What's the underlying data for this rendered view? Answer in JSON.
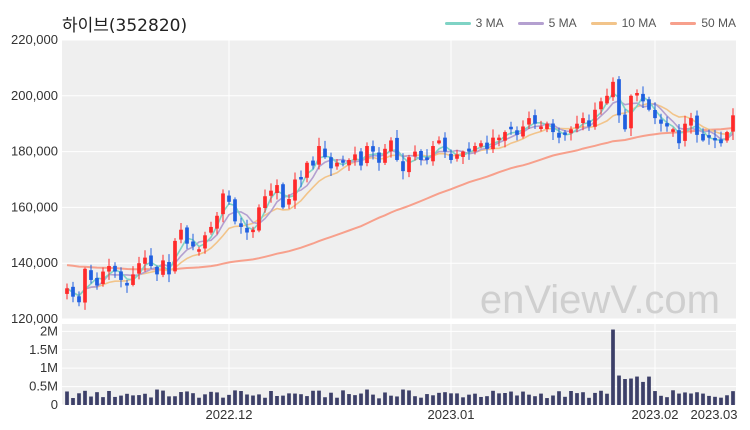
{
  "title": "하이브(352820)",
  "watermark": "enViewV.com",
  "colors": {
    "up": "#ff2a2a",
    "down": "#1f5fe0",
    "volume": "#3c3f68",
    "ma3": "#7fd3c5",
    "ma5": "#b4a0d0",
    "ma10": "#f2c48a",
    "ma50": "#f7a08c",
    "panel": "#efefef"
  },
  "chart_data": {
    "type": "candlestick",
    "title": "하이브(352820)",
    "x_tick_labels": [
      "2022.12",
      "2023.01",
      "2023.02",
      "2023.03"
    ],
    "x_tick_index": [
      27,
      64,
      98,
      132
    ],
    "price_axis": {
      "range": [
        120000,
        220000
      ],
      "ticks": [
        120000,
        140000,
        160000,
        180000,
        200000,
        220000
      ],
      "tick_labels": [
        "120,000",
        "140,000",
        "160,000",
        "180,000",
        "200,000",
        "220,000"
      ]
    },
    "volume_axis": {
      "range": [
        0,
        2200000
      ],
      "ticks": [
        0,
        500000,
        1000000,
        1500000,
        2000000
      ],
      "tick_labels": [
        "0",
        "0.5M",
        "1M",
        "1.5M",
        "2M"
      ]
    },
    "legend": [
      {
        "name": "3 MA",
        "color": "#7fd3c5"
      },
      {
        "name": "5 MA",
        "color": "#b4a0d0"
      },
      {
        "name": "10 MA",
        "color": "#f2c48a"
      },
      {
        "name": "50 MA",
        "color": "#f7a08c"
      }
    ],
    "closes": [
      131000,
      128000,
      126000,
      138000,
      134000,
      132000,
      137000,
      139000,
      137000,
      134000,
      132000,
      136000,
      140000,
      142000,
      139000,
      136000,
      141000,
      136000,
      148000,
      152000,
      147000,
      146000,
      145000,
      150000,
      153000,
      157000,
      165000,
      162000,
      155000,
      153000,
      151000,
      152000,
      160000,
      164000,
      166000,
      168000,
      160000,
      163000,
      170000,
      170000,
      176000,
      175000,
      182000,
      178000,
      174000,
      176000,
      176000,
      177000,
      179000,
      175000,
      182000,
      180000,
      176000,
      181000,
      184000,
      177000,
      173000,
      178000,
      180000,
      177000,
      177000,
      182000,
      184000,
      180000,
      177000,
      179000,
      180000,
      180000,
      182000,
      183000,
      181000,
      185000,
      185000,
      187000,
      188000,
      186000,
      189000,
      192000,
      190000,
      189000,
      190000,
      187000,
      185000,
      186000,
      188000,
      190000,
      192000,
      189000,
      195000,
      198000,
      200000,
      205000,
      193000,
      188000,
      200000,
      201000,
      198000,
      195000,
      192000,
      190000,
      189000,
      188000,
      183000,
      190000,
      192000,
      186000,
      184000,
      185000,
      184000,
      183000,
      187000,
      193000
    ]
  }
}
